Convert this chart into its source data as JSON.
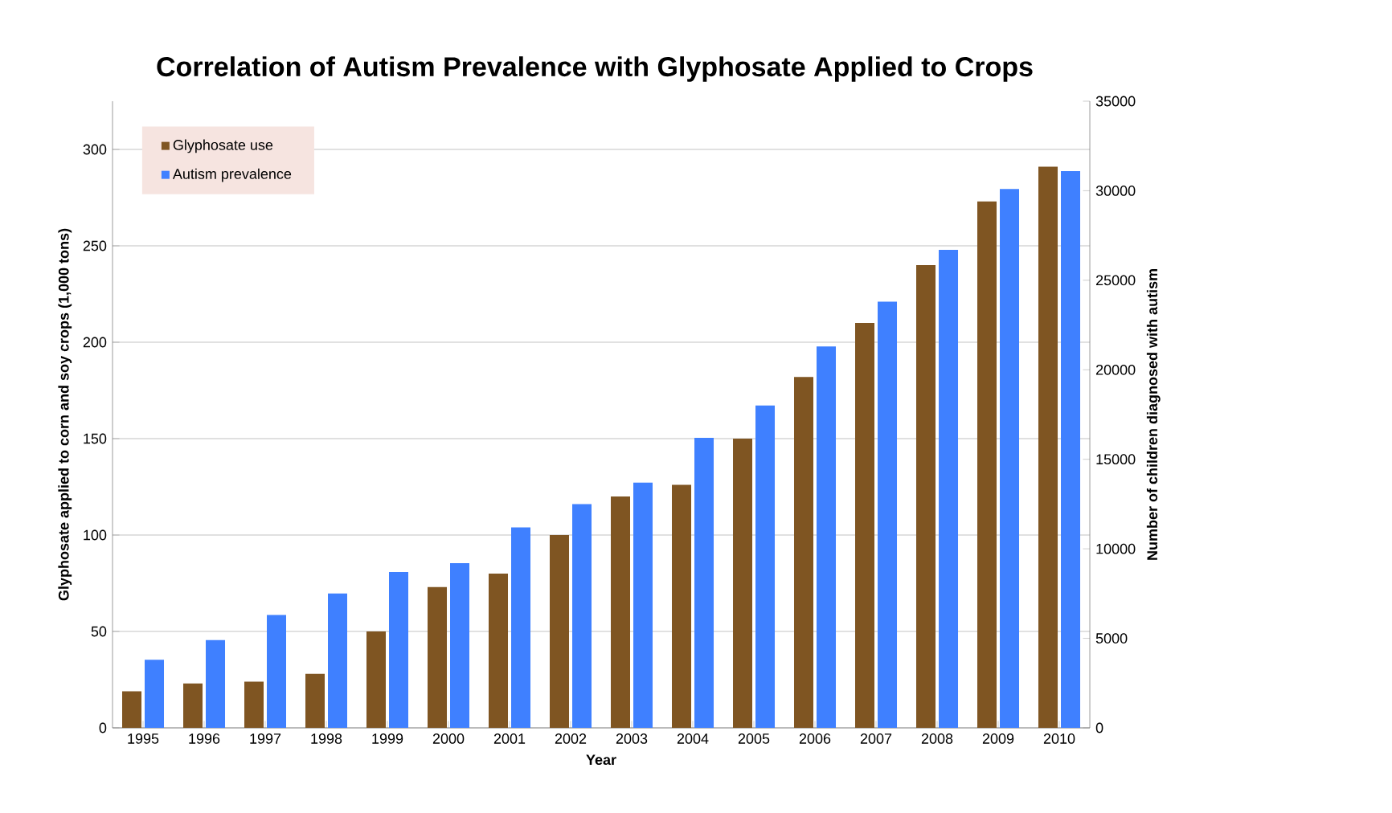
{
  "chart_data": {
    "type": "bar",
    "title": "Correlation of Autism Prevalence with Glyphosate Applied to Crops",
    "xlabel": "Year",
    "ylabel": "Glyphosate applied to corn and soy crops (1,000 tons)",
    "y2label": "Number of children diagnosed with autism",
    "categories": [
      "1995",
      "1996",
      "1997",
      "1998",
      "1999",
      "2000",
      "2001",
      "2002",
      "2003",
      "2004",
      "2005",
      "2006",
      "2007",
      "2008",
      "2009",
      "2010"
    ],
    "series": [
      {
        "name": "Glyphosate use",
        "color": "#7f5522",
        "values": [
          19,
          23,
          24,
          28,
          50,
          73,
          80,
          100,
          120,
          126,
          150,
          182,
          210,
          240,
          273,
          291
        ]
      },
      {
        "name": "Autism prevalence",
        "color": "#3f80ff",
        "axis": "y2",
        "values": [
          3800,
          4900,
          6300,
          7500,
          8700,
          9200,
          11200,
          12500,
          13700,
          16200,
          18000,
          21300,
          23800,
          26700,
          30100,
          31100
        ]
      }
    ],
    "ylim": [
      0,
      325
    ],
    "yticks": [
      0,
      50,
      100,
      150,
      200,
      250,
      300
    ],
    "y2lim": [
      0,
      35000
    ],
    "y2ticks": [
      0,
      5000,
      10000,
      15000,
      20000,
      25000,
      30000,
      35000
    ],
    "grid": "y",
    "legend": "top left"
  }
}
